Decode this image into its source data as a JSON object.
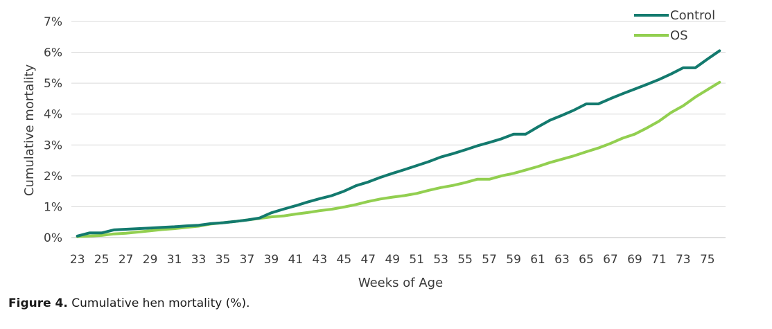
{
  "chart_data": {
    "type": "line",
    "title": "",
    "xlabel": "Weeks of Age",
    "ylabel": "Cumulative mortality",
    "x": [
      23,
      24,
      25,
      26,
      27,
      28,
      29,
      30,
      31,
      32,
      33,
      34,
      35,
      36,
      37,
      38,
      39,
      40,
      41,
      42,
      43,
      44,
      45,
      46,
      47,
      48,
      49,
      50,
      51,
      52,
      53,
      54,
      55,
      56,
      57,
      58,
      59,
      60,
      61,
      62,
      63,
      64,
      65,
      66,
      67,
      68,
      69,
      70,
      71,
      72,
      73,
      74,
      75,
      76
    ],
    "x_tick_labels": [
      "23",
      "25",
      "27",
      "29",
      "31",
      "33",
      "35",
      "37",
      "39",
      "41",
      "43",
      "45",
      "47",
      "49",
      "51",
      "53",
      "55",
      "57",
      "59",
      "61",
      "63",
      "65",
      "67",
      "69",
      "71",
      "73",
      "75"
    ],
    "y_tick_labels": [
      "0%",
      "1%",
      "2%",
      "3%",
      "4%",
      "5%",
      "6%",
      "7%"
    ],
    "ylim": [
      0,
      7
    ],
    "grid": true,
    "legend_position": "top-right",
    "series": [
      {
        "name": "Control",
        "color": "#137a6e",
        "values": [
          0.05,
          0.15,
          0.15,
          0.25,
          0.27,
          0.29,
          0.31,
          0.33,
          0.35,
          0.38,
          0.4,
          0.45,
          0.48,
          0.52,
          0.57,
          0.63,
          0.8,
          0.92,
          1.03,
          1.15,
          1.26,
          1.36,
          1.5,
          1.68,
          1.8,
          1.95,
          2.08,
          2.2,
          2.33,
          2.46,
          2.61,
          2.72,
          2.84,
          2.97,
          3.08,
          3.2,
          3.35,
          3.35,
          3.58,
          3.8,
          3.96,
          4.13,
          4.33,
          4.33,
          4.5,
          4.66,
          4.81,
          4.96,
          5.12,
          5.3,
          5.5,
          5.5,
          5.78,
          6.05
        ]
      },
      {
        "name": "OS",
        "color": "#92cf50",
        "values": [
          0.03,
          0.05,
          0.07,
          0.12,
          0.14,
          0.18,
          0.22,
          0.26,
          0.29,
          0.33,
          0.37,
          0.44,
          0.48,
          0.52,
          0.57,
          0.62,
          0.67,
          0.7,
          0.76,
          0.81,
          0.87,
          0.92,
          0.99,
          1.07,
          1.17,
          1.25,
          1.31,
          1.36,
          1.43,
          1.53,
          1.62,
          1.69,
          1.78,
          1.89,
          1.89,
          2.0,
          2.08,
          2.19,
          2.3,
          2.43,
          2.54,
          2.65,
          2.78,
          2.9,
          3.05,
          3.22,
          3.35,
          3.55,
          3.77,
          4.05,
          4.27,
          4.55,
          4.79,
          5.03
        ]
      }
    ]
  },
  "caption": {
    "label": "Figure 4.",
    "text": " Cumulative hen mortality (%)."
  }
}
